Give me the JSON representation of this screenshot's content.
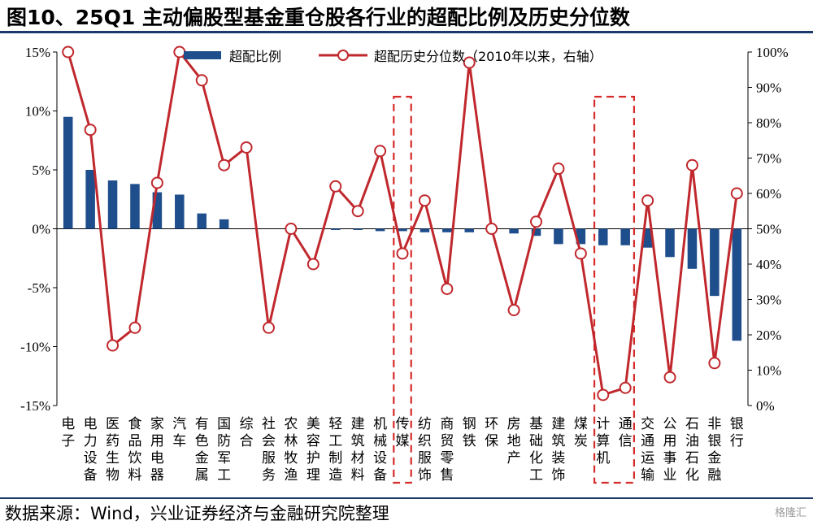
{
  "header": {
    "title": "图10、25Q1 主动偏股型基金重仓股各行业的超配比例及历史分位数"
  },
  "footer": {
    "source": "数据来源：Wind，兴业证券经济与金融研究院整理",
    "watermark": "格隆汇"
  },
  "colors": {
    "bar": "#1f4e8c",
    "line": "#c0282d",
    "highlight_box": "#d62b2b",
    "axis": "#000000",
    "rule": "#1b3a6b"
  },
  "chart_data": {
    "type": "bar",
    "title": "",
    "xlabel": "",
    "ylabel": "",
    "ylim": [
      -15,
      15
    ],
    "y_ticks": [
      "-15%",
      "-10%",
      "-5%",
      "0%",
      "5%",
      "10%",
      "15%"
    ],
    "y2lim": [
      0,
      100
    ],
    "y2_ticks": [
      "0%",
      "10%",
      "20%",
      "30%",
      "40%",
      "50%",
      "60%",
      "70%",
      "80%",
      "90%",
      "100%"
    ],
    "grid": false,
    "legend_position": "top",
    "categories": [
      "电子",
      "电力设备",
      "医药生物",
      "食品饮料",
      "家用电器",
      "汽车",
      "有色金属",
      "国防军工",
      "综合",
      "社会服务",
      "农林牧渔",
      "美容护理",
      "轻工制造",
      "建筑材料",
      "机械设备",
      "传媒",
      "纺织服饰",
      "商贸零售",
      "钢铁",
      "环保",
      "房地产",
      "基础化工",
      "建筑装饰",
      "煤炭",
      "计算机",
      "通信",
      "交通运输",
      "公用事业",
      "石油石化",
      "非银金融",
      "银行"
    ],
    "highlighted_categories": [
      "传媒",
      "计算机",
      "通信"
    ],
    "series": [
      {
        "name": "超配比例",
        "type": "bar",
        "axis": "left",
        "unit": "%",
        "values": [
          9.5,
          5.0,
          4.1,
          3.8,
          3.1,
          2.9,
          1.3,
          0.8,
          0.0,
          0.0,
          0.0,
          0.0,
          -0.1,
          -0.1,
          -0.2,
          -0.2,
          -0.3,
          -0.3,
          -0.3,
          0.0,
          -0.4,
          -0.6,
          -1.3,
          -1.3,
          -1.4,
          -1.4,
          -1.6,
          -2.4,
          -3.4,
          -5.7,
          -9.5
        ]
      },
      {
        "name": "超配历史分位数（2010年以来，右轴）",
        "type": "line",
        "axis": "right",
        "unit": "%",
        "values": [
          100,
          78,
          17,
          22,
          63,
          100,
          92,
          68,
          73,
          22,
          50,
          40,
          62,
          55,
          72,
          43,
          58,
          33,
          97,
          50,
          27,
          52,
          67,
          43,
          3,
          5,
          58,
          8,
          68,
          12,
          60
        ]
      }
    ]
  }
}
